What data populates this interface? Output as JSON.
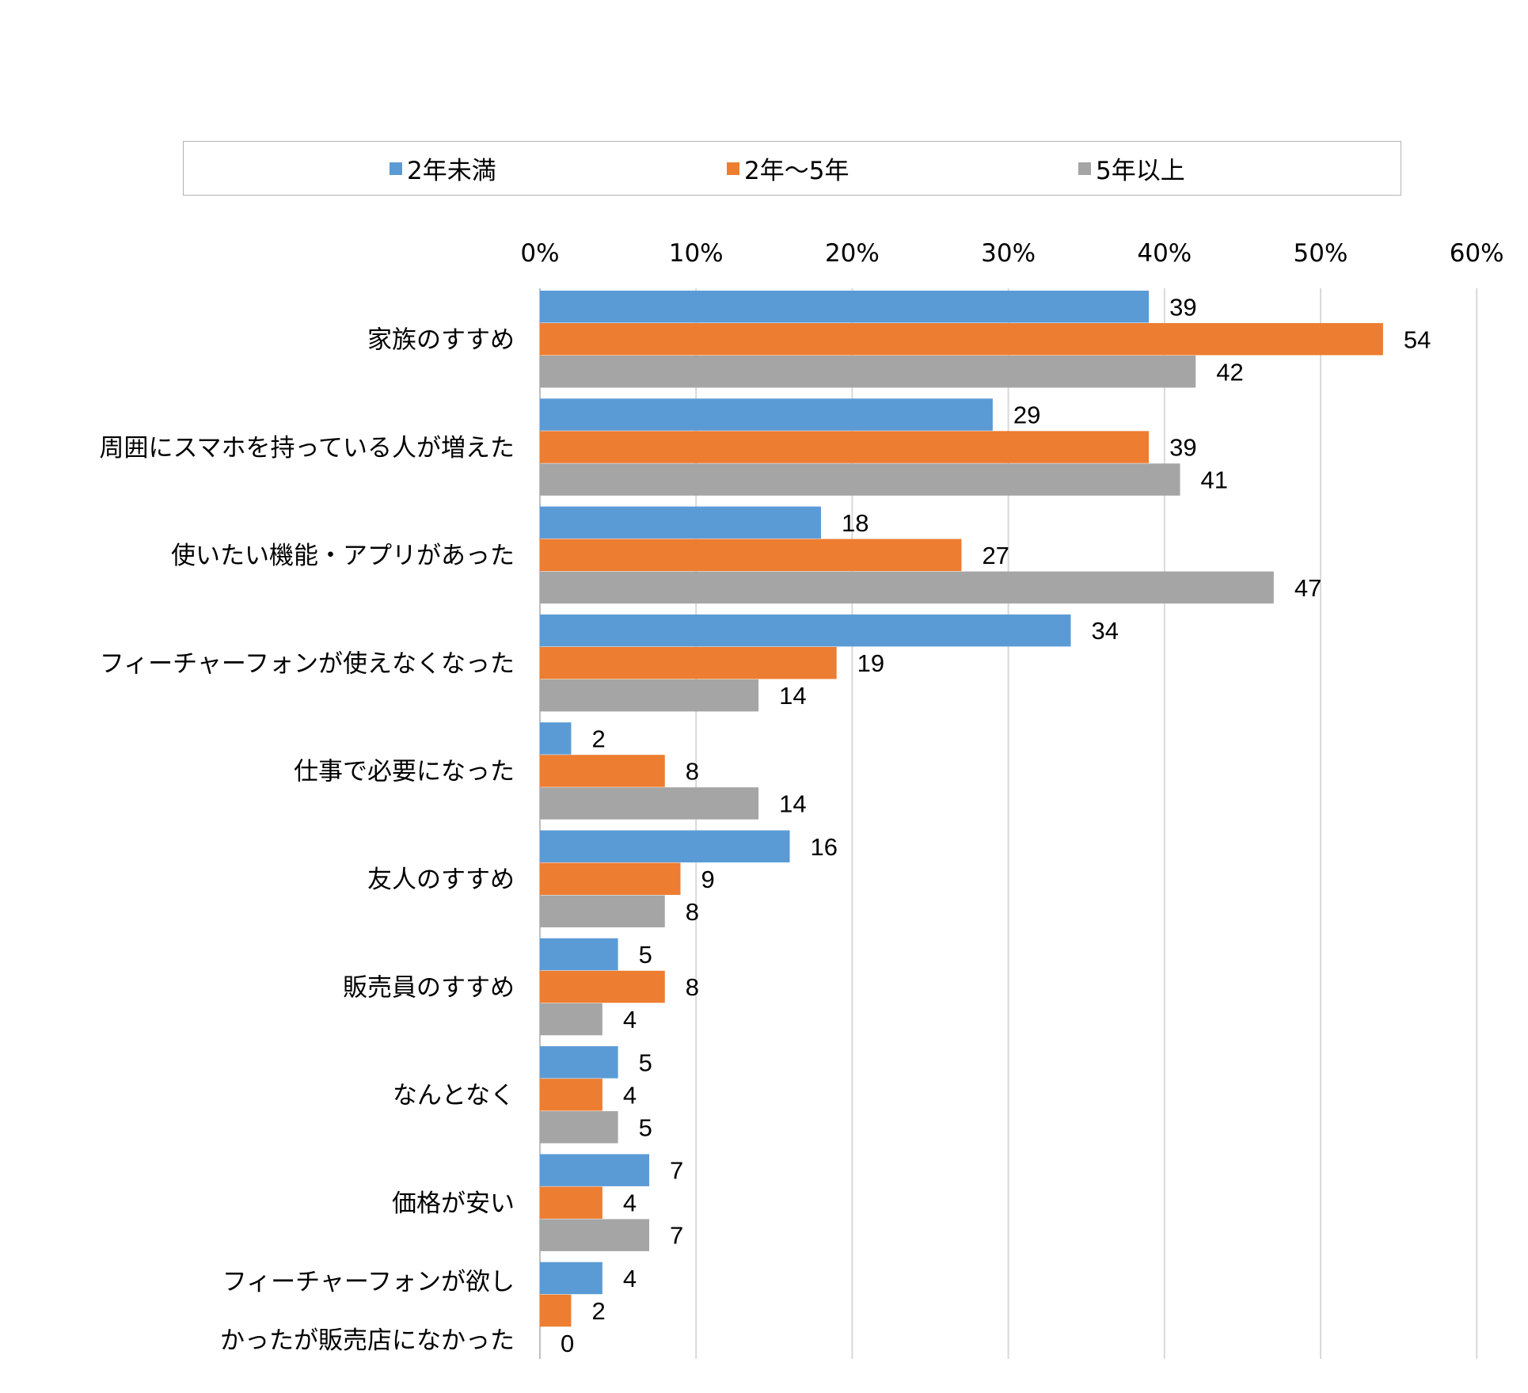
{
  "chart_data": {
    "type": "bar",
    "orientation": "horizontal",
    "legend_position": "top",
    "grid": true,
    "xlim": [
      0,
      60
    ],
    "x_ticks": [
      "0%",
      "10%",
      "20%",
      "30%",
      "40%",
      "50%",
      "60%"
    ],
    "categories": [
      [
        "家族のすすめ"
      ],
      [
        "周囲にスマホを持っている人が増えた"
      ],
      [
        "使いたい機能・アプリがあった"
      ],
      [
        "フィーチャーフォンが使えなくなった"
      ],
      [
        "仕事で必要になった"
      ],
      [
        "友人のすすめ"
      ],
      [
        "販売員のすすめ"
      ],
      [
        "なんとなく"
      ],
      [
        "価格が安い"
      ],
      [
        "フィーチャーフォンが欲し",
        "かったが販売店になかった"
      ]
    ],
    "series": [
      {
        "name": "2年未満",
        "color": "#5b9bd5",
        "values": [
          39,
          29,
          18,
          34,
          2,
          16,
          5,
          5,
          7,
          4
        ]
      },
      {
        "name": "2年～5年",
        "color": "#ed7d31",
        "values": [
          54,
          39,
          27,
          19,
          8,
          9,
          8,
          4,
          4,
          2
        ]
      },
      {
        "name": "5年以上",
        "color": "#a5a5a5",
        "values": [
          42,
          41,
          47,
          14,
          14,
          8,
          4,
          5,
          7,
          0
        ]
      }
    ]
  }
}
